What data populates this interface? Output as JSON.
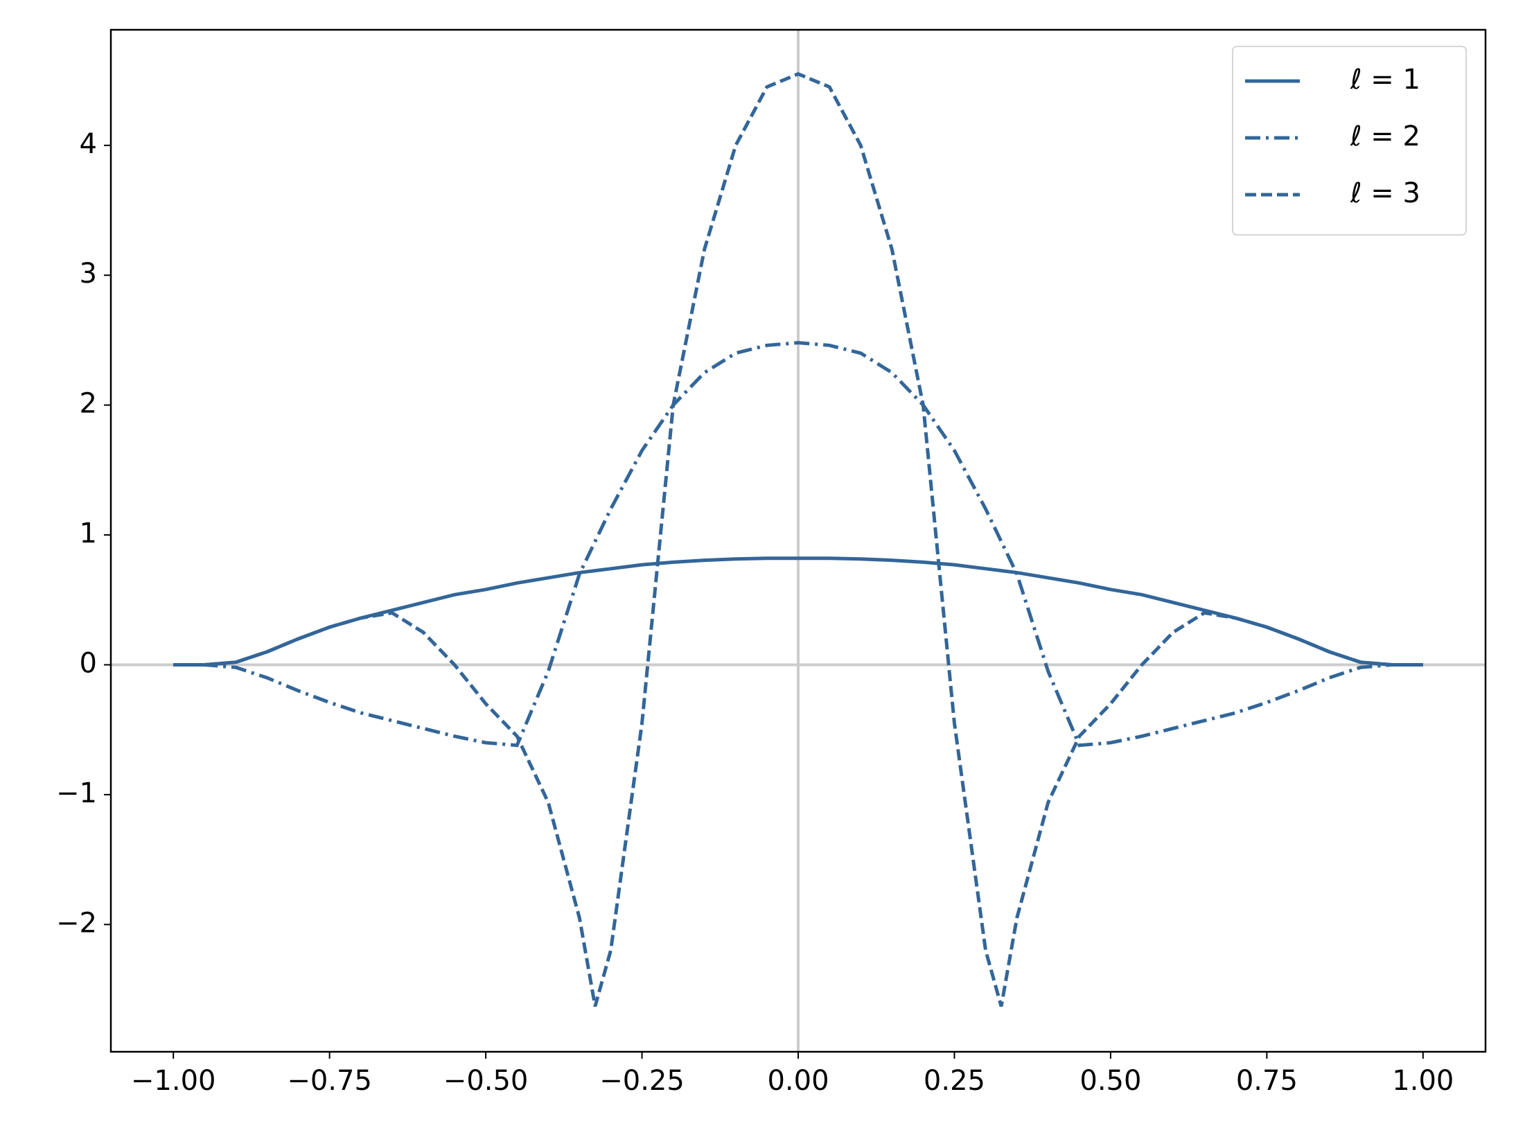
{
  "chart_data": {
    "type": "line",
    "x": [
      -1,
      -0.95,
      -0.9,
      -0.85,
      -0.8,
      -0.75,
      -0.7,
      -0.65,
      -0.6,
      -0.55,
      -0.5,
      -0.45,
      -0.4,
      -0.35,
      -0.325,
      -0.3,
      -0.25,
      -0.2,
      -0.15,
      -0.1,
      -0.05,
      0,
      0.05,
      0.1,
      0.15,
      0.2,
      0.25,
      0.3,
      0.325,
      0.35,
      0.4,
      0.45,
      0.5,
      0.55,
      0.6,
      0.65,
      0.7,
      0.75,
      0.8,
      0.85,
      0.9,
      0.95,
      1
    ],
    "series": [
      {
        "name": "ℓ = 1",
        "color": "#336699",
        "linestyle": "solid",
        "values": [
          0,
          0,
          0.02,
          0.1,
          0.2,
          0.29,
          0.36,
          0.42,
          0.48,
          0.54,
          0.58,
          0.63,
          0.67,
          0.71,
          0.725,
          0.74,
          0.77,
          0.79,
          0.805,
          0.815,
          0.82,
          0.82,
          0.82,
          0.815,
          0.805,
          0.79,
          0.77,
          0.74,
          0.725,
          0.71,
          0.67,
          0.63,
          0.58,
          0.54,
          0.48,
          0.42,
          0.36,
          0.29,
          0.2,
          0.1,
          0.02,
          0,
          0
        ]
      },
      {
        "name": "ℓ = 2",
        "color": "#336699",
        "linestyle": "dashdot",
        "values": [
          0,
          0,
          -0.02,
          -0.1,
          -0.2,
          -0.29,
          -0.37,
          -0.43,
          -0.49,
          -0.55,
          -0.6,
          -0.62,
          -0.05,
          0.7,
          0.95,
          1.2,
          1.65,
          2.0,
          2.25,
          2.4,
          2.46,
          2.48,
          2.46,
          2.4,
          2.25,
          2.0,
          1.65,
          1.2,
          0.95,
          0.7,
          -0.05,
          -0.62,
          -0.6,
          -0.55,
          -0.49,
          -0.43,
          -0.37,
          -0.29,
          -0.2,
          -0.1,
          -0.02,
          0,
          0
        ]
      },
      {
        "name": "ℓ = 3",
        "color": "#336699",
        "linestyle": "dashed",
        "values": [
          0,
          0,
          0.02,
          0.1,
          0.2,
          0.29,
          0.36,
          0.4,
          0.25,
          0.0,
          -0.3,
          -0.55,
          -1.06,
          -1.95,
          -2.63,
          -2.2,
          -0.45,
          2.0,
          3.2,
          4.0,
          4.45,
          4.55,
          4.45,
          4.0,
          3.2,
          2.0,
          -0.45,
          -2.2,
          -2.63,
          -1.95,
          -1.06,
          -0.55,
          -0.3,
          0.0,
          0.25,
          0.4,
          0.36,
          0.29,
          0.2,
          0.1,
          0.02,
          0,
          0
        ]
      }
    ],
    "xlim": [
      -1.1,
      1.1
    ],
    "ylim": [
      -2.98,
      4.89
    ],
    "xticks": [
      {
        "value": -1,
        "label": "−1.00"
      },
      {
        "value": -0.75,
        "label": "−0.75"
      },
      {
        "value": -0.5,
        "label": "−0.50"
      },
      {
        "value": -0.25,
        "label": "−0.25"
      },
      {
        "value": 0,
        "label": "0.00"
      },
      {
        "value": 0.25,
        "label": "0.25"
      },
      {
        "value": 0.5,
        "label": "0.50"
      },
      {
        "value": 0.75,
        "label": "0.75"
      },
      {
        "value": 1,
        "label": "1.00"
      }
    ],
    "yticks": [
      {
        "value": -2,
        "label": "−2"
      },
      {
        "value": -1,
        "label": "−1"
      },
      0,
      1,
      2,
      3,
      4
    ],
    "hlines": [
      0
    ],
    "vlines": [
      0
    ],
    "reference_color": "#cccccc",
    "legend": "upper right"
  }
}
